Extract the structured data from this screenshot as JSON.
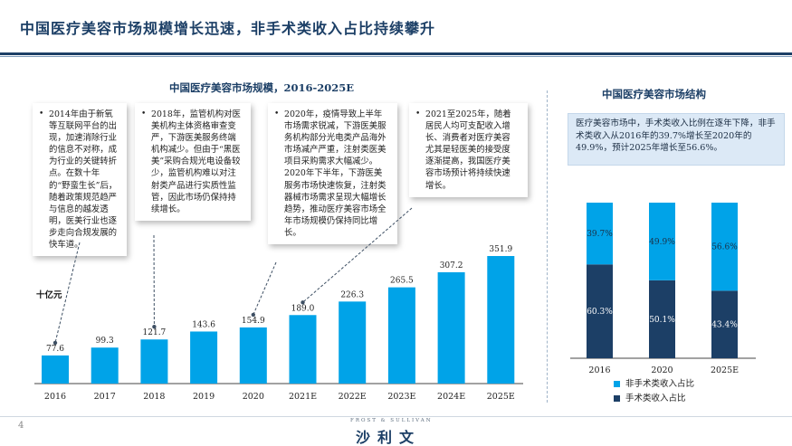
{
  "page": {
    "title": "中国医疗美容市场规模增长迅速，非手术类收入占比持续攀升",
    "page_number": "4",
    "logo_top": "FROST & SULLIVAN",
    "logo_text": "沙利文"
  },
  "notes": [
    {
      "text": "2014年由于新氧等互联网平台的出现，加速消除行业的信息不对称，成为行业的关键转折点。在数十年的“野蛮生长”后，随着政策规范趋严与信息的越发透明，医美行业也逐步走向合规发展的快车道。"
    },
    {
      "text": "2018年，监管机构对医美机构主体资格审查变严，下游医美服务终端机构减少。但由于“黑医美”采购合规光电设备较少，监管机构难以对注射类产品进行实质性监管，因此市场仍保持持续增长。"
    },
    {
      "text": "2020年，疫情导致上半年市场需求锐减，下游医美服务机构部分光电类产品海外市场减产严重，注射类医美项目采购需求大幅减少。2020年下半年，下游医美服务市场快速恢复，注射类器械市场需求呈现大幅增长趋势，推动医疗美容市场全年市场规模仍保持同比增长。"
    },
    {
      "text": "2021至2025年，随着居民人均可支配收入增长、消费者对医疗美容尤其是轻医美的接受度逐渐提高，我国医疗美容市场预计将持续快速增长。"
    }
  ],
  "summary_text": "医疗美容市场中，手术类收入比例在逐年下降，非手术类收入从2016年的39.7%增长至2020年的49.9%，预计2025年增长至56.6%。",
  "chart_data": [
    {
      "type": "bar",
      "title": "中国医疗美容市场规模，2016-2025E",
      "ylabel": "十亿元",
      "categories": [
        "2016",
        "2017",
        "2018",
        "2019",
        "2020",
        "2021E",
        "2022E",
        "2023E",
        "2024E",
        "2025E"
      ],
      "values": [
        77.6,
        99.3,
        121.7,
        143.6,
        154.9,
        189.0,
        226.3,
        265.5,
        307.2,
        351.9
      ],
      "value_labels": [
        "77.6",
        "99.3",
        "121.7",
        "143.6",
        "154.9",
        "189.0",
        "226.3",
        "265.5",
        "307.2",
        "351.9"
      ],
      "ylim": [
        0,
        351.9
      ],
      "color": "#00a3e8"
    },
    {
      "type": "bar",
      "stacked": true,
      "percent": true,
      "title": "中国医疗美容市场结构",
      "categories": [
        "2016",
        "2020",
        "2025E"
      ],
      "series": [
        {
          "name": "手术类收入占比",
          "values": [
            60.3,
            50.1,
            43.4
          ],
          "labels": [
            "60.3%",
            "50.1%",
            "43.4%"
          ],
          "color": "#1c3f66"
        },
        {
          "name": "非手术类收入占比",
          "values": [
            39.7,
            49.9,
            56.6
          ],
          "labels": [
            "39.7%",
            "49.9%",
            "56.6%"
          ],
          "color": "#00a3e8"
        }
      ],
      "legend_position": "bottom"
    }
  ]
}
